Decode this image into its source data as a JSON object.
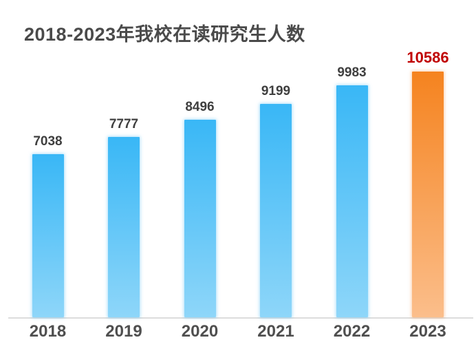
{
  "chart_data": {
    "type": "bar",
    "title": "2018-2023年我校在读研究生人数",
    "categories": [
      "2018",
      "2019",
      "2020",
      "2021",
      "2022",
      "2023"
    ],
    "values": [
      7038,
      7777,
      8496,
      9199,
      9983,
      10586
    ],
    "xlabel": "",
    "ylabel": "",
    "ylim": [
      0,
      11000
    ],
    "grid": false,
    "legend": "none",
    "data_labels": true,
    "highlight_index": 5
  },
  "styles": {
    "title_color": "#4a4a4a",
    "value_label_color": "#3f3f3f",
    "highlight_value_label_color": "#c00000",
    "year_label_color": "#4f4f4f",
    "axis_line_color": "#dcdcdc",
    "bar_gradient_top": "#39b7f6",
    "bar_gradient_bottom": "#8ed6f9",
    "highlight_bar_gradient_top": "#f5831f",
    "highlight_bar_gradient_bottom": "#fbbe8b",
    "background_color": "#ffffff"
  }
}
